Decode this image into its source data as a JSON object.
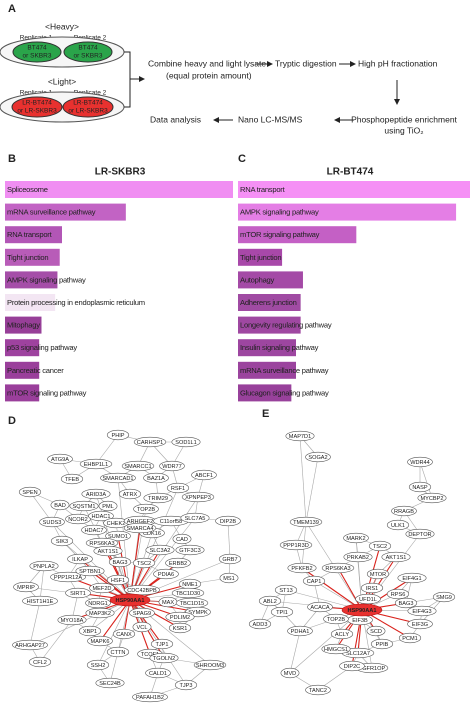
{
  "panel_labels": [
    "A",
    "B",
    "C",
    "D",
    "E"
  ],
  "workflow": {
    "heavy_label": "<Heavy>",
    "light_label": "<Light>",
    "replicates": [
      "Replicate 1",
      "Replicate 2"
    ],
    "heavy_cells": [
      "BT474",
      "or SKBR3"
    ],
    "light_cells": [
      "LR-BT474",
      "or LR-SKBR3"
    ],
    "combine": [
      "Combine heavy and light lysate",
      "(equal protein amount)"
    ],
    "digestion": "Tryptic digestion",
    "fractionation": "High pH fractionation",
    "enrichment": [
      "Phosphopeptide enrichment",
      "using TiO₂"
    ],
    "lcms": "Nano LC-MS/MS",
    "analysis": "Data analysis"
  },
  "chart_data": [
    {
      "type": "bar",
      "title": "LR-SKBR3",
      "xlim": [
        0,
        100
      ],
      "categories": [
        "Spliceosome",
        "mRNA surveillance pathway",
        "RNA transport",
        "Tight junction",
        "AMPK signaling pathway",
        "Protein processing in endoplasmic reticulum",
        "Mitophagy",
        "p53 signaling pathway",
        "Pancreatic cancer",
        "mTOR signaling pathway"
      ],
      "values": [
        100,
        53,
        25,
        24,
        23,
        22,
        16,
        15,
        15,
        15
      ],
      "colors": [
        "#f08ef2",
        "#c263c4",
        "#b256b6",
        "#b85cb8",
        "#a54ea8",
        "#f3e6f3",
        "#973f98",
        "#9e429f",
        "#9a3f9b",
        "#9a3f9b"
      ]
    },
    {
      "type": "bar",
      "title": "LR-BT474",
      "xlim": [
        0,
        100
      ],
      "categories": [
        "RNA transport",
        "AMPK signaling pathway",
        "mTOR signaling pathway",
        "Tight junction",
        "Autophagy",
        "Adherens junction",
        "Longevity regulating pathway",
        "Insulin signaling pathway",
        "mRNA surveillance pathway",
        "Glucagon signaling pathway"
      ],
      "values": [
        100,
        94,
        51,
        19,
        28,
        27,
        27,
        25,
        25,
        23
      ],
      "colors": [
        "#f590f5",
        "#e47ee5",
        "#c460c5",
        "#a848a9",
        "#a44aa6",
        "#a04ba3",
        "#9f48a1",
        "#9d46a0",
        "#9b449e",
        "#98419b"
      ]
    }
  ],
  "networks": [
    {
      "hub": "HSP90AA1",
      "nodes": [
        "PHIP",
        "CARHSP1",
        "SOD1L1",
        "ATG9A",
        "EHBP1L1",
        "SMARCC1",
        "WDR77",
        "TFEB",
        "SMARCAD1",
        "BAZ1A",
        "ABCF1",
        "SPEN",
        "ARID3A",
        "ATRX",
        "RSF1",
        "TRIM29",
        "XPNPEP3",
        "BAD",
        "SQSTM1",
        "PML",
        "TOP2B",
        "DIP2B",
        "SUDS3",
        "NCOR2",
        "HDAC1",
        "CHEK2",
        "ARHGEF2",
        "C11orf58",
        "SLC7A5",
        "HDAC7",
        "SUMO1",
        "CDK16",
        "SMARCA4",
        "CAD",
        "SIK3",
        "RPS6KA3",
        "AKT1S1",
        "GTF3C3",
        "GRB7",
        "ILKAP",
        "BAG3",
        "TSC2",
        "ERBB2",
        "PNPLA2",
        "SLC3A2",
        "PPP1R12A",
        "HSF1",
        "PDIA6",
        "NME1",
        "MEF2D",
        "SPTBN1",
        "CDC42BPB",
        "TBC1D30",
        "MS1",
        "MPRIP",
        "HIST1H1E",
        "SIRT1",
        "MAX",
        "TBC1D15",
        "MYO18A",
        "NDRG1",
        "MAP3K2",
        "SPAG9",
        "SYMPK",
        "XBP1",
        "MAPK6",
        "CANX",
        "VCL",
        "PDLIM2",
        "KSR1",
        "ARHGAP27",
        "TJP1",
        "TCOF1",
        "CTTN",
        "TGOLN2",
        "CFL2",
        "SSH2",
        "CALD1",
        "SHROOM3",
        "SEC24B",
        "TJP3",
        "PAFAH1B2"
      ]
    },
    {
      "hub": "HSP90AA1",
      "nodes": [
        "MAP7D1",
        "WDR44",
        "SOGA2",
        "NASP",
        "MYCBP2",
        "RRAGB",
        "TMEM139",
        "ULK1",
        "DEPTOR",
        "PPP1R3D",
        "MARK2",
        "TSC2",
        "AKT1S1",
        "PRKAB2",
        "PFKFB2",
        "RPS6KA3",
        "ST13",
        "EIF4G1",
        "SMG9",
        "CAP1",
        "MTOR",
        "IRS1",
        "RPS6",
        "BAG3",
        "ABL2",
        "TPI1",
        "ACACA",
        "UFD1L",
        "EIF4G3",
        "EIF3G",
        "EIF3B",
        "TOP2B",
        "PCM1",
        "ADD3",
        "PDHA1",
        "ACLY",
        "SCD",
        "PPIB",
        "SLC12A7",
        "HMGCS1",
        "FGFR1OP",
        "DIP2C",
        "MVD",
        "TANC2"
      ]
    }
  ]
}
